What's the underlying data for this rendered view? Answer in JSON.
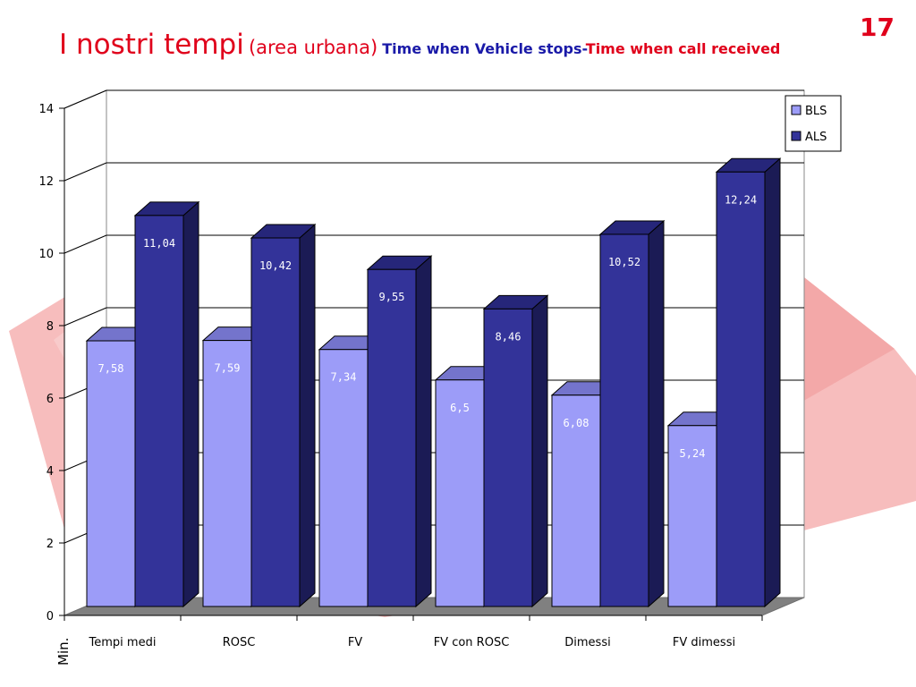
{
  "slide": {
    "number": "17",
    "title_main": "I nostri tempi",
    "title_paren": "(area urbana)",
    "title_sub_blue": "Time when Vehicle stops-",
    "title_sub_red": "Time when call received"
  },
  "colors": {
    "title_red": "#e0001b",
    "title_blue": "#1a1aa8",
    "bls_front": "#9c9cf8",
    "bls_top": "#7474cc",
    "bls_side": "#5a5ab0",
    "als_front": "#333399",
    "als_top": "#26267a",
    "als_side": "#1b1b55",
    "floor": "#808080",
    "background_shape": "#f4a0a0"
  },
  "chart_data": {
    "type": "bar",
    "style": "3d-clustered-column",
    "categories": [
      "Tempi medi",
      "ROSC",
      "FV",
      "FV con ROSC",
      "Dimessi",
      "FV dimessi"
    ],
    "series": [
      {
        "name": "BLS",
        "values": [
          7.58,
          7.59,
          7.34,
          6.5,
          6.08,
          5.24
        ],
        "labels": [
          "7,58",
          "7,59",
          "7,34",
          "6,5",
          "6,08",
          "5,24"
        ]
      },
      {
        "name": "ALS",
        "values": [
          11.04,
          10.42,
          9.55,
          8.46,
          10.52,
          12.24
        ],
        "labels": [
          "11,04",
          "10,42",
          "9,55",
          "8,46",
          "10,52",
          "12,24"
        ]
      }
    ],
    "ylabel": "Min.",
    "xlabel": "",
    "ylim": [
      0,
      14
    ],
    "yticks": [
      0,
      2,
      4,
      6,
      8,
      10,
      12,
      14
    ],
    "grid": true,
    "legend": "top-right"
  }
}
